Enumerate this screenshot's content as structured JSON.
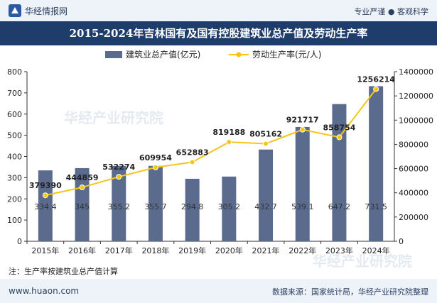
{
  "header": {
    "brand": "华经情报网",
    "slogan": "专业严谨 ● 客观科学"
  },
  "title": "2015-2024年吉林国有及国有控股建筑业总产值及劳动生产率",
  "watermark": "华经产业研究院",
  "note": "注：生产率按建筑业总产值计算",
  "footer": {
    "site": "www.huaon.com",
    "source": "数据来源：国家统计局，华经产业研究院整理"
  },
  "colors": {
    "bar": "#5b6b8e",
    "line": "#f5c518",
    "header": "#1f3d6b"
  },
  "chart_data": {
    "type": "bar",
    "categories": [
      "2015年",
      "2016年",
      "2017年",
      "2018年",
      "2019年",
      "2020年",
      "2021年",
      "2022年",
      "2023年",
      "2024年"
    ],
    "series": [
      {
        "name": "建筑业总产值(亿元)",
        "type": "bar",
        "axis": "left",
        "values": [
          334.4,
          345,
          355.2,
          355.7,
          294.8,
          305.2,
          432.7,
          539.1,
          647.2,
          731.5
        ]
      },
      {
        "name": "劳动生产率(元/人)",
        "type": "line",
        "axis": "right",
        "values": [
          379390,
          444859,
          532274,
          609954,
          652883,
          819188,
          805162,
          921717,
          858754,
          1256214
        ]
      }
    ],
    "y_left": {
      "min": 0,
      "max": 800,
      "ticks": [
        0,
        100,
        200,
        300,
        400,
        500,
        600,
        700,
        800
      ]
    },
    "y_right": {
      "min": 0,
      "max": 1400000,
      "ticks": [
        0,
        200000,
        400000,
        600000,
        800000,
        1000000,
        1200000,
        1400000
      ]
    },
    "legend": "top-center",
    "grid": false
  }
}
